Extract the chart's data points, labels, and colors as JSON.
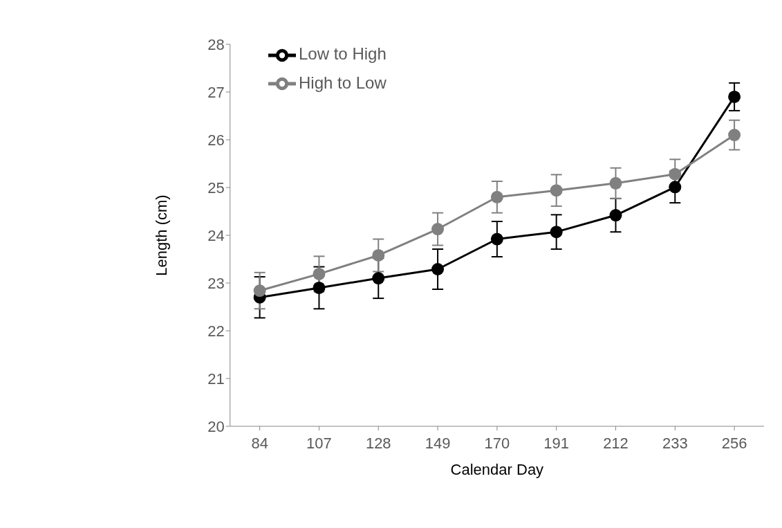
{
  "chart_data": {
    "type": "line",
    "xlabel": "Calendar Day",
    "ylabel": "Length (cm)",
    "categories": [
      "84",
      "107",
      "128",
      "149",
      "170",
      "191",
      "212",
      "233",
      "256"
    ],
    "series": [
      {
        "name": "Low to High",
        "color": "#000000",
        "values": [
          22.7,
          22.9,
          23.1,
          23.29,
          23.92,
          24.07,
          24.42,
          25.01,
          26.9
        ],
        "errors": [
          0.43,
          0.44,
          0.42,
          0.42,
          0.37,
          0.36,
          0.35,
          0.33,
          0.29
        ]
      },
      {
        "name": "High to Low",
        "color": "#808080",
        "values": [
          22.84,
          23.19,
          23.58,
          24.13,
          24.8,
          24.94,
          25.09,
          25.28,
          26.1
        ],
        "errors": [
          0.38,
          0.37,
          0.34,
          0.34,
          0.33,
          0.33,
          0.32,
          0.31,
          0.31
        ]
      }
    ],
    "ylim": [
      20,
      28
    ],
    "yticks": [
      20,
      21,
      22,
      23,
      24,
      25,
      26,
      27,
      28
    ],
    "grid": false,
    "legend": "top left",
    "marker": "circle",
    "line_style": "solid"
  }
}
